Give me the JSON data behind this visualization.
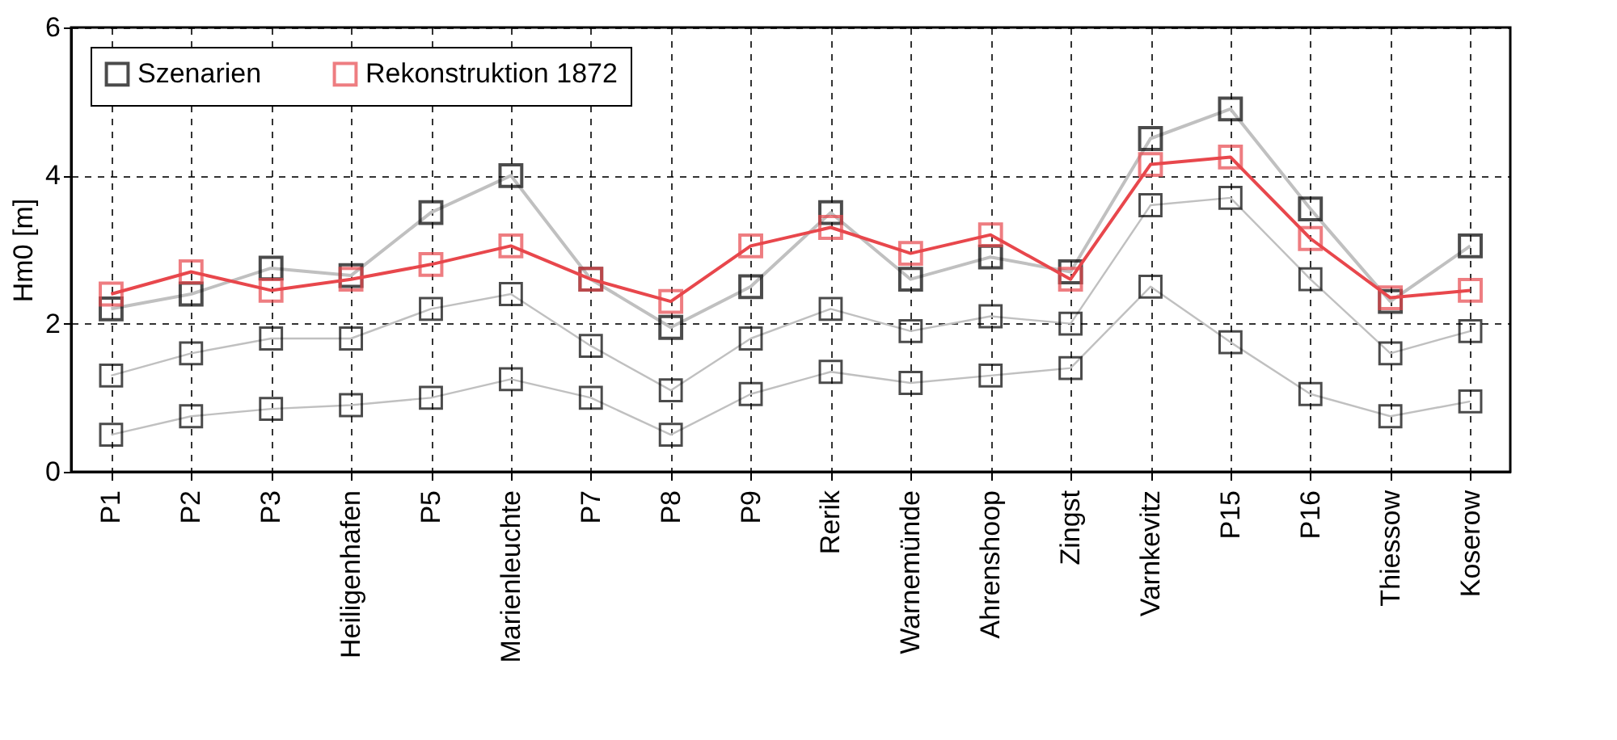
{
  "chart_data": {
    "type": "line",
    "ylabel": "Hm0 [m]",
    "categories": [
      "P1",
      "P2",
      "P3",
      "Heiligenhafen",
      "P5",
      "Marienleuchte",
      "P7",
      "P8",
      "P9",
      "Rerik",
      "Warnemünde",
      "Ahrenshoop",
      "Zingst",
      "Varnkevitz",
      "P15",
      "P16",
      "Thiessow",
      "Koserow"
    ],
    "series": [
      {
        "name": "Szenarien",
        "color": "#c0c0c0",
        "colors": [
          "#000000",
          "#000000",
          "#000000",
          "#000000",
          "#000000",
          "#000000",
          "#000000",
          "#000000",
          "#000000",
          "#000000",
          "#000000",
          "#000000",
          "#000000",
          "#000000",
          "#000000",
          "#000000",
          "#000000",
          "#000000"
        ],
        "values": [
          2.2,
          2.4,
          2.75,
          2.65,
          3.5,
          4.0,
          2.6,
          1.95,
          2.5,
          3.5,
          2.6,
          2.9,
          2.7,
          4.5,
          4.9,
          3.55,
          2.3,
          3.05
        ]
      },
      {
        "color": "#c0c0c0",
        "colors": [
          "#000000",
          "#000000",
          "#000000",
          "#000000",
          "#000000",
          "#000000",
          "#000000",
          "#000000",
          "#000000",
          "#000000",
          "#000000",
          "#000000",
          "#000000",
          "#000000",
          "#000000",
          "#000000",
          "#000000",
          "#000000"
        ],
        "values": [
          1.3,
          1.6,
          1.8,
          1.8,
          2.2,
          2.4,
          1.7,
          1.1,
          1.8,
          2.2,
          1.9,
          2.1,
          2.0,
          3.6,
          3.7,
          2.6,
          1.6,
          1.9
        ]
      },
      {
        "color": "#c0c0c0",
        "colors": [
          "#000000",
          "#000000",
          "#000000",
          "#000000",
          "#000000",
          "#000000",
          "#000000",
          "#000000",
          "#000000",
          "#000000",
          "#000000",
          "#000000",
          "#000000",
          "#000000",
          "#000000",
          "#000000",
          "#000000",
          "#000000"
        ],
        "values": [
          0.5,
          0.75,
          0.85,
          0.9,
          1.0,
          1.25,
          1.0,
          0.5,
          1.05,
          1.35,
          1.2,
          1.3,
          1.4,
          2.5,
          1.75,
          1.05,
          0.75,
          0.95
        ]
      },
      {
        "name": "Rekonstruktion 1872",
        "color": "#e8474c",
        "values": [
          2.4,
          2.7,
          2.45,
          2.6,
          2.8,
          3.05,
          2.6,
          2.3,
          3.05,
          3.3,
          2.95,
          3.2,
          2.6,
          4.15,
          4.25,
          3.15,
          2.35,
          2.45
        ]
      }
    ],
    "ylim": [
      0,
      6
    ],
    "yticks": [
      0,
      2,
      4,
      6
    ],
    "grid": true,
    "legend": "top left",
    "marker": "square",
    "line_style": "solid"
  }
}
